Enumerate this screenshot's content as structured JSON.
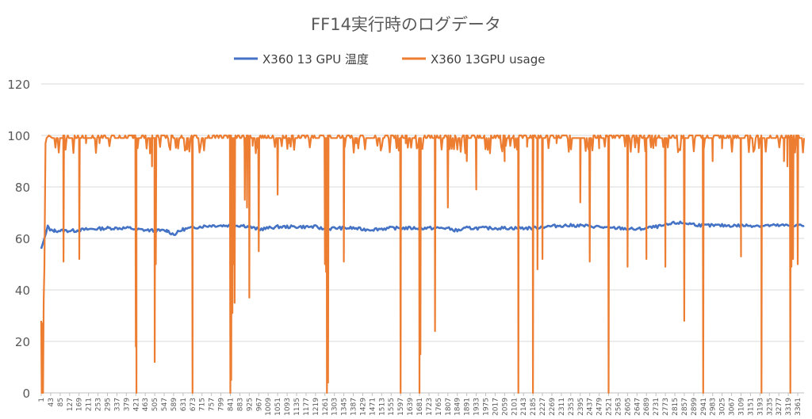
{
  "chart_data": {
    "type": "line",
    "title": "FF14実行時のログデータ",
    "xlabel": "",
    "ylabel": "",
    "ylim": [
      0,
      120
    ],
    "yticks": [
      0,
      20,
      40,
      60,
      80,
      100,
      120
    ],
    "x_range": [
      1,
      3389
    ],
    "x_tick_labels": [
      "1",
      "43",
      "85",
      "127",
      "169",
      "211",
      "253",
      "295",
      "337",
      "379",
      "421",
      "463",
      "505",
      "547",
      "589",
      "631",
      "673",
      "715",
      "757",
      "799",
      "841",
      "883",
      "925",
      "967",
      "1009",
      "1051",
      "1093",
      "1135",
      "1177",
      "1219",
      "1261",
      "1303",
      "1345",
      "1387",
      "1429",
      "1471",
      "1513",
      "1555",
      "1597",
      "1639",
      "1681",
      "1723",
      "1765",
      "1807",
      "1849",
      "1891",
      "1933",
      "1975",
      "2017",
      "2059",
      "2101",
      "2143",
      "2185",
      "2227",
      "2269",
      "2311",
      "2353",
      "2395",
      "2437",
      "2479",
      "2521",
      "2563",
      "2605",
      "2647",
      "2689",
      "2731",
      "2773",
      "2815",
      "2857",
      "2899",
      "2941",
      "2983",
      "3025",
      "3067",
      "3109",
      "3151",
      "3193",
      "3235",
      "3277",
      "3319",
      "3361"
    ],
    "grid": "horizontal",
    "legend_position": "top",
    "series": [
      {
        "name": "X360 13 GPU 温度",
        "color": "#4472C4",
        "points": [
          [
            1,
            56
          ],
          [
            8,
            58
          ],
          [
            15,
            60
          ],
          [
            22,
            62
          ],
          [
            30,
            65
          ],
          [
            40,
            63
          ],
          [
            60,
            63
          ],
          [
            100,
            63
          ],
          [
            150,
            63
          ],
          [
            200,
            63.5
          ],
          [
            300,
            64
          ],
          [
            400,
            64
          ],
          [
            421,
            63.5
          ],
          [
            505,
            63
          ],
          [
            560,
            63
          ],
          [
            590,
            61.5
          ],
          [
            630,
            63.5
          ],
          [
            700,
            64.5
          ],
          [
            757,
            65
          ],
          [
            841,
            65
          ],
          [
            900,
            65
          ],
          [
            967,
            63.5
          ],
          [
            1009,
            64
          ],
          [
            1051,
            64.5
          ],
          [
            1135,
            64.5
          ],
          [
            1219,
            64.5
          ],
          [
            1261,
            63.5
          ],
          [
            1303,
            64
          ],
          [
            1387,
            64
          ],
          [
            1429,
            63.5
          ],
          [
            1471,
            63.5
          ],
          [
            1555,
            64
          ],
          [
            1639,
            64
          ],
          [
            1723,
            64
          ],
          [
            1800,
            64
          ],
          [
            1849,
            63
          ],
          [
            1891,
            64
          ],
          [
            1975,
            64
          ],
          [
            2059,
            64
          ],
          [
            2143,
            64
          ],
          [
            2185,
            64
          ],
          [
            2227,
            64.5
          ],
          [
            2311,
            65
          ],
          [
            2395,
            65
          ],
          [
            2479,
            64.5
          ],
          [
            2521,
            64
          ],
          [
            2563,
            64
          ],
          [
            2647,
            63.5
          ],
          [
            2689,
            64
          ],
          [
            2731,
            64.5
          ],
          [
            2773,
            65
          ],
          [
            2815,
            66
          ],
          [
            2857,
            66
          ],
          [
            2899,
            65.5
          ],
          [
            2941,
            65
          ],
          [
            2983,
            65
          ],
          [
            3025,
            65
          ],
          [
            3109,
            65
          ],
          [
            3151,
            65
          ],
          [
            3235,
            65
          ],
          [
            3319,
            65
          ],
          [
            3361,
            65
          ],
          [
            3389,
            65
          ]
        ]
      },
      {
        "name": "X360 13GPU usage",
        "color": "#ED7D31",
        "base": 99,
        "points": [
          [
            1,
            28
          ],
          [
            3,
            0
          ],
          [
            6,
            27
          ],
          [
            9,
            0
          ],
          [
            12,
            36
          ],
          [
            15,
            49
          ],
          [
            20,
            97
          ],
          [
            25,
            99
          ],
          [
            35,
            100
          ],
          [
            50,
            99
          ]
        ],
        "dips": [
          [
            100,
            51
          ],
          [
            170,
            52
          ],
          [
            200,
            97
          ],
          [
            260,
            97
          ],
          [
            410,
            99
          ],
          [
            421,
            18
          ],
          [
            424,
            0
          ],
          [
            480,
            99
          ],
          [
            493,
            88
          ],
          [
            505,
            12
          ],
          [
            510,
            50
          ],
          [
            590,
            99
          ],
          [
            650,
            99
          ],
          [
            673,
            0
          ],
          [
            750,
            99
          ],
          [
            841,
            0
          ],
          [
            845,
            5
          ],
          [
            850,
            31
          ],
          [
            855,
            50
          ],
          [
            860,
            35
          ],
          [
            905,
            75
          ],
          [
            915,
            72
          ],
          [
            925,
            37
          ],
          [
            940,
            96
          ],
          [
            967,
            55
          ],
          [
            1051,
            77
          ],
          [
            1100,
            97
          ],
          [
            1261,
            50
          ],
          [
            1266,
            47
          ],
          [
            1270,
            0
          ],
          [
            1275,
            4
          ],
          [
            1345,
            51
          ],
          [
            1400,
            97
          ],
          [
            1597,
            0
          ],
          [
            1620,
            97
          ],
          [
            1681,
            0
          ],
          [
            1685,
            15
          ],
          [
            1750,
            24
          ],
          [
            1807,
            72
          ],
          [
            1891,
            90
          ],
          [
            1933,
            79
          ],
          [
            2059,
            90
          ],
          [
            2120,
            0
          ],
          [
            2160,
            97
          ],
          [
            2185,
            0
          ],
          [
            2205,
            48
          ],
          [
            2227,
            52
          ],
          [
            2290,
            97
          ],
          [
            2395,
            74
          ],
          [
            2437,
            51
          ],
          [
            2479,
            95
          ],
          [
            2521,
            0
          ],
          [
            2605,
            49
          ],
          [
            2650,
            97
          ],
          [
            2689,
            52
          ],
          [
            2731,
            96
          ],
          [
            2773,
            49
          ],
          [
            2857,
            28
          ],
          [
            2941,
            0
          ],
          [
            2983,
            90
          ],
          [
            3025,
            95
          ],
          [
            3109,
            53
          ],
          [
            3200,
            0
          ],
          [
            3300,
            90
          ],
          [
            3315,
            88
          ],
          [
            3328,
            0
          ],
          [
            3333,
            49
          ],
          [
            3340,
            52
          ],
          [
            3361,
            50
          ]
        ]
      }
    ]
  }
}
